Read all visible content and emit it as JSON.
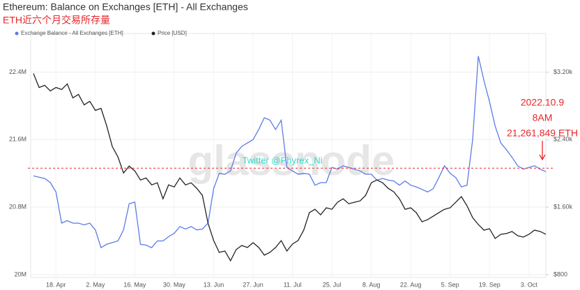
{
  "chart_data": {
    "type": "line",
    "title": "Ethereum: Balance on Exchanges [ETH] - All Exchanges",
    "subtitle": "ETH近六个月交易所存量",
    "watermark": "glassnode",
    "credit": "Twitter @Phyrex_Ni",
    "annotation": {
      "lines": [
        "2022.10.9",
        "8AM"
      ],
      "value": 21261849,
      "label": "21,261,849 ETH",
      "color": "#e8262a"
    },
    "categories": [
      null,
      null,
      null,
      null,
      "18. Apr",
      null,
      null,
      null,
      null,
      null,
      null,
      "2. May",
      null,
      null,
      null,
      null,
      null,
      null,
      "16. May",
      null,
      null,
      null,
      null,
      null,
      null,
      "30. May",
      null,
      null,
      null,
      null,
      null,
      null,
      "13. Jun",
      null,
      null,
      null,
      null,
      null,
      null,
      "27. Jun",
      null,
      null,
      null,
      null,
      null,
      null,
      "11. Jul",
      null,
      null,
      null,
      null,
      null,
      null,
      "25. Jul",
      null,
      null,
      null,
      null,
      null,
      null,
      "8. Aug",
      null,
      null,
      null,
      null,
      null,
      null,
      "22. Aug",
      null,
      null,
      null,
      null,
      null,
      null,
      "5. Sep",
      null,
      null,
      null,
      null,
      null,
      null,
      "19. Sep",
      null,
      null,
      null,
      null,
      null,
      null,
      "3. Oct",
      null,
      null,
      null
    ],
    "series": [
      {
        "name": "Exchange Balance - All Exchanges [ETH]",
        "color": "#5b7be8",
        "values": [
          21170000,
          21155000,
          21140000,
          21090000,
          20980000,
          20610000,
          20640000,
          20610000,
          20610000,
          20590000,
          20610000,
          20530000,
          20320000,
          20360000,
          20380000,
          20400000,
          20530000,
          20840000,
          20860000,
          20360000,
          20350000,
          20320000,
          20400000,
          20400000,
          20450000,
          20490000,
          20570000,
          20540000,
          20570000,
          20530000,
          20540000,
          20610000,
          21020000,
          21200000,
          21190000,
          21230000,
          21440000,
          21520000,
          21560000,
          21600000,
          21720000,
          21860000,
          21830000,
          21720000,
          21830000,
          21270000,
          21230000,
          21190000,
          21200000,
          21190000,
          21060000,
          21090000,
          21090000,
          21270000,
          21250000,
          21290000,
          21270000,
          21250000,
          21230000,
          21190000,
          21190000,
          21120000,
          21140000,
          21120000,
          21110000,
          21060000,
          21110000,
          21060000,
          21040000,
          21010000,
          20980000,
          21020000,
          21150000,
          21290000,
          21200000,
          21150000,
          21040000,
          21060000,
          21600000,
          22590000,
          22300000,
          22050000,
          21760000,
          21560000,
          21480000,
          21390000,
          21290000,
          21250000,
          21270000,
          21290000,
          21250000,
          21220000
        ]
      },
      {
        "name": "Price [USD]",
        "color": "#222222",
        "axis": "y2",
        "values": [
          3183,
          3018,
          3043,
          2977,
          3018,
          2994,
          3060,
          2895,
          2936,
          2812,
          2854,
          2746,
          2771,
          2565,
          2317,
          2194,
          2004,
          2087,
          2029,
          1922,
          1946,
          1864,
          1889,
          1699,
          1864,
          1839,
          1946,
          1864,
          1889,
          1823,
          1740,
          1410,
          1204,
          1064,
          1080,
          965,
          1097,
          1146,
          1122,
          1179,
          1122,
          1031,
          1064,
          1122,
          1204,
          1080,
          1163,
          1204,
          1328,
          1534,
          1575,
          1509,
          1592,
          1575,
          1658,
          1699,
          1641,
          1658,
          1674,
          1740,
          1889,
          1922,
          1889,
          1823,
          1781,
          1699,
          1575,
          1592,
          1534,
          1427,
          1452,
          1493,
          1534,
          1575,
          1592,
          1658,
          1724,
          1616,
          1476,
          1394,
          1328,
          1344,
          1229,
          1278,
          1287,
          1311,
          1262,
          1245,
          1278,
          1328,
          1311,
          1278
        ]
      }
    ],
    "ylim": [
      20000000,
      22800000
    ],
    "yticks": [
      {
        "value": 20000000,
        "label": "20M"
      },
      {
        "value": 20800000,
        "label": "20.8M"
      },
      {
        "value": 21600000,
        "label": "21.6M"
      },
      {
        "value": 22400000,
        "label": "22.4M"
      }
    ],
    "y2lim": [
      800,
      3600
    ],
    "y2ticks": [
      {
        "value": 800,
        "label": "$800"
      },
      {
        "value": 1600,
        "label": "$1.60k"
      },
      {
        "value": 2400,
        "label": "$2.40k"
      },
      {
        "value": 3200,
        "label": "$3.20k"
      }
    ],
    "grid": true
  }
}
